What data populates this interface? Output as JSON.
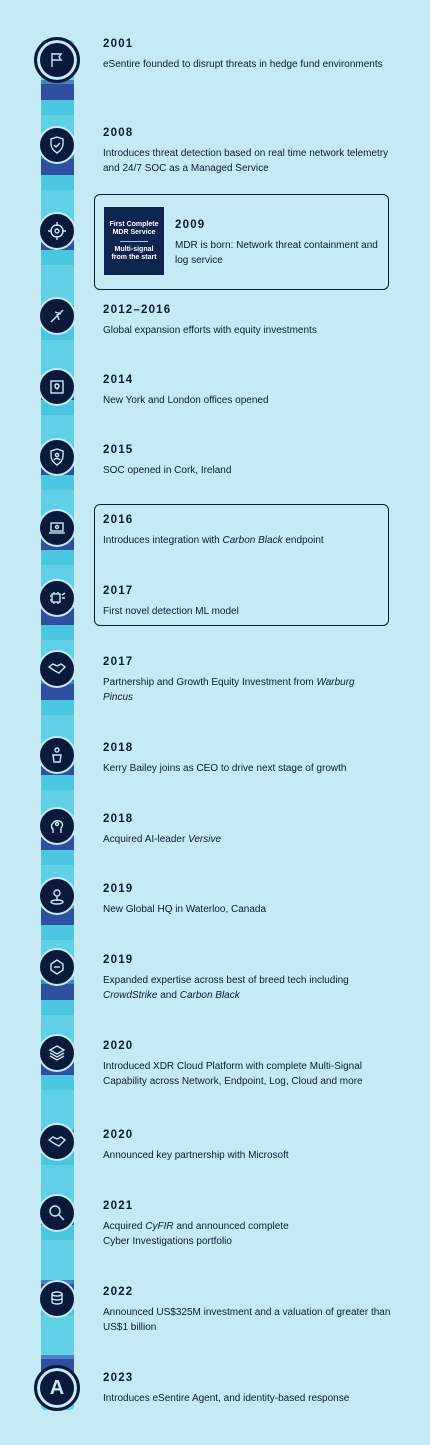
{
  "badge": {
    "line1": "First Complete",
    "line2": "MDR Service",
    "line3": "Multi-signal",
    "line4": "from the start"
  },
  "timeline": [
    {
      "year": "2001",
      "icon": "flag-icon",
      "text": "eSentire founded to disrupt threats in hedge fund environments"
    },
    {
      "year": "2008",
      "icon": "shield-check-icon",
      "text": "Introduces threat detection based on real time network telemetry and 24/7 SOC as a Managed Service"
    },
    {
      "year": "2009",
      "icon": "target-icon",
      "text": "MDR is born: Network threat containment and log service"
    },
    {
      "year": "2012–2016",
      "icon": "globe-plane-icon",
      "text": "Global expansion efforts with equity investments"
    },
    {
      "year": "2014",
      "icon": "map-pin-icon",
      "text": "New York and London offices opened"
    },
    {
      "year": "2015",
      "icon": "shield-person-icon",
      "text": "SOC opened in Cork, Ireland"
    },
    {
      "year": "2016",
      "icon": "laptop-icon",
      "text_pre": "Introduces integration with ",
      "text_em": "Carbon Black",
      "text_post": " endpoint"
    },
    {
      "year": "2017",
      "icon": "chip-icon",
      "text": "First novel detection ML model"
    },
    {
      "year": "2017",
      "icon": "handshake-icon",
      "text_pre": "Partnership and Growth Equity Investment from ",
      "text_em": "Warburg Pincus",
      "text_post": ""
    },
    {
      "year": "2018",
      "icon": "person-podium-icon",
      "text": "Kerry Bailey joins as CEO to drive next stage of growth"
    },
    {
      "year": "2018",
      "icon": "ai-head-icon",
      "text_pre": "Acquired AI-leader ",
      "text_em": "Versive",
      "text_post": ""
    },
    {
      "year": "2019",
      "icon": "location-icon",
      "text": "New Global HQ in Waterloo, Canada"
    },
    {
      "year": "2019",
      "icon": "tech-stack-icon",
      "text_pre": "Expanded expertise across best of breed tech including ",
      "text_em": "CrowdStrike",
      "text_mid": " and ",
      "text_em2": "Carbon Black"
    },
    {
      "year": "2020",
      "icon": "layers-icon",
      "text": "Introduced XDR Cloud Platform with complete Multi-Signal Capability across Network, Endpoint, Log, Cloud and more"
    },
    {
      "year": "2020",
      "icon": "handshake-icon",
      "text": "Announced key partnership with Microsoft"
    },
    {
      "year": "2021",
      "icon": "magnifier-icon",
      "text_pre": "Acquired ",
      "text_em": "CyFIR",
      "text_post": " and announced complete Cyber Investigations portfolio"
    },
    {
      "year": "2022",
      "icon": "coins-icon",
      "text": "Announced US$325M investment and a valuation of greater than US$1 billion"
    },
    {
      "year": "2023",
      "icon": "agent-a-icon",
      "icon_letter": "A",
      "text": "Introduces eSentire Agent, and identity-based response"
    }
  ]
}
